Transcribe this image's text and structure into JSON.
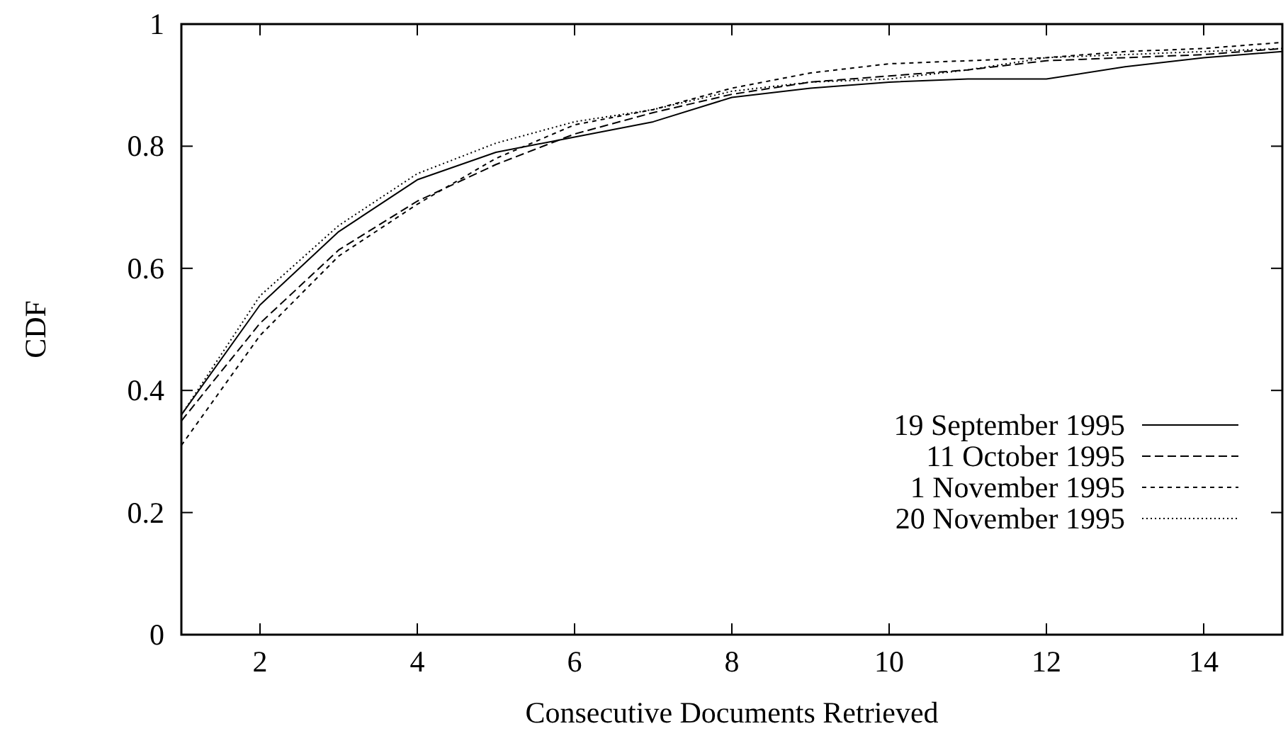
{
  "chart_data": {
    "type": "line",
    "xlabel": "Consecutive Documents Retrieved",
    "ylabel": "CDF",
    "x": [
      1,
      2,
      3,
      4,
      5,
      6,
      7,
      8,
      9,
      10,
      11,
      12,
      13,
      14,
      15
    ],
    "xlim": [
      1,
      15
    ],
    "xticks": [
      2,
      4,
      6,
      8,
      10,
      12,
      14
    ],
    "ylim": [
      0,
      1
    ],
    "yticks": [
      0,
      0.2,
      0.4,
      0.6,
      0.8,
      1
    ],
    "legend": "bottom right",
    "grid": false,
    "marker": "none",
    "series": [
      {
        "name": "19 September 1995",
        "color": "#000000",
        "line_style": "solid",
        "values": [
          0.36,
          0.54,
          0.66,
          0.745,
          0.79,
          0.815,
          0.84,
          0.88,
          0.895,
          0.905,
          0.91,
          0.91,
          0.93,
          0.945,
          0.955
        ]
      },
      {
        "name": "11 October 1995",
        "color": "#000000",
        "line_style": "dashed",
        "values": [
          0.35,
          0.51,
          0.63,
          0.71,
          0.77,
          0.82,
          0.855,
          0.885,
          0.905,
          0.915,
          0.925,
          0.94,
          0.945,
          0.95,
          0.96
        ]
      },
      {
        "name": "1 November 1995",
        "color": "#000000",
        "line_style": "dashed",
        "values": [
          0.31,
          0.49,
          0.62,
          0.705,
          0.78,
          0.835,
          0.86,
          0.895,
          0.92,
          0.935,
          0.94,
          0.945,
          0.955,
          0.96,
          0.97
        ]
      },
      {
        "name": "20 November 1995",
        "color": "#000000",
        "line_style": "dotted",
        "values": [
          0.36,
          0.555,
          0.67,
          0.755,
          0.805,
          0.84,
          0.86,
          0.89,
          0.905,
          0.91,
          0.925,
          0.945,
          0.95,
          0.955,
          0.96
        ]
      }
    ]
  }
}
